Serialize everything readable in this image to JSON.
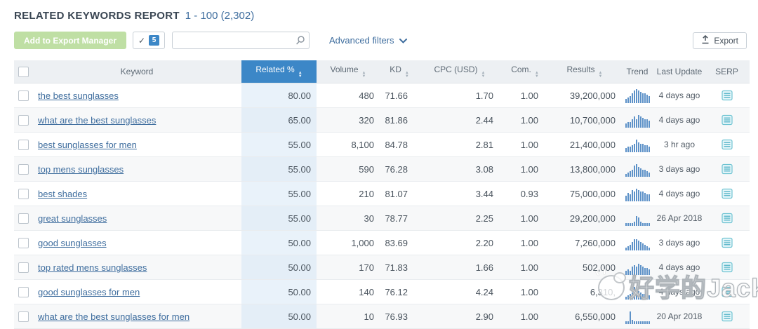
{
  "report": {
    "title": "RELATED KEYWORDS REPORT",
    "range_label": "1 - 100 (2,302)"
  },
  "toolbar": {
    "add_to_export_label": "Add to Export Manager",
    "selected_badge": "5",
    "search_value": "",
    "advanced_filters_label": "Advanced filters",
    "export_label": "Export"
  },
  "icons": {
    "check": "✓",
    "sort_up": "▲",
    "sort_down": "▼"
  },
  "table": {
    "headers": {
      "keyword": "Keyword",
      "related": "Related %",
      "volume": "Volume",
      "kd": "KD",
      "cpc": "CPC (USD)",
      "com": "Com.",
      "results": "Results",
      "trend": "Trend",
      "last_update": "Last Update",
      "serp": "SERP"
    },
    "rows": [
      {
        "keyword": "the best sunglasses",
        "related": "80.00",
        "volume": "480",
        "kd": "71.66",
        "cpc": "1.70",
        "com": "1.00",
        "results": "39,200,000",
        "last_update": "4 days ago",
        "trend": [
          2,
          3,
          4,
          6,
          8,
          9,
          8,
          7,
          6,
          6,
          5,
          4
        ]
      },
      {
        "keyword": "what are the best sunglasses",
        "related": "65.00",
        "volume": "320",
        "kd": "81.86",
        "cpc": "2.44",
        "com": "1.00",
        "results": "10,700,000",
        "last_update": "4 days ago",
        "trend": [
          2,
          3,
          3,
          5,
          7,
          5,
          8,
          7,
          6,
          5,
          5,
          4
        ]
      },
      {
        "keyword": "best sunglasses for men",
        "related": "55.00",
        "volume": "8,100",
        "kd": "84.78",
        "cpc": "2.81",
        "com": "1.00",
        "results": "21,400,000",
        "last_update": "3 hr ago",
        "trend": [
          2,
          3,
          3,
          4,
          5,
          8,
          6,
          5,
          5,
          4,
          4,
          3
        ]
      },
      {
        "keyword": "top mens sunglasses",
        "related": "55.00",
        "volume": "590",
        "kd": "76.28",
        "cpc": "3.08",
        "com": "1.00",
        "results": "13,800,000",
        "last_update": "3 days ago",
        "trend": [
          1,
          2,
          3,
          4,
          7,
          8,
          6,
          5,
          4,
          4,
          3,
          2
        ]
      },
      {
        "keyword": "best shades",
        "related": "55.00",
        "volume": "210",
        "kd": "81.07",
        "cpc": "3.44",
        "com": "0.93",
        "results": "75,000,000",
        "last_update": "4 days ago",
        "trend": [
          3,
          5,
          4,
          7,
          6,
          8,
          7,
          6,
          6,
          5,
          4,
          4
        ]
      },
      {
        "keyword": "great sunglasses",
        "related": "55.00",
        "volume": "30",
        "kd": "78.77",
        "cpc": "2.25",
        "com": "1.00",
        "results": "29,200,000",
        "last_update": "26 Apr 2018",
        "trend": [
          1,
          1,
          1,
          1,
          2,
          6,
          5,
          2,
          1,
          1,
          1,
          1
        ]
      },
      {
        "keyword": "good sunglasses",
        "related": "50.00",
        "volume": "1,000",
        "kd": "83.69",
        "cpc": "2.20",
        "com": "1.00",
        "results": "7,260,000",
        "last_update": "3 days ago",
        "trend": [
          1,
          2,
          3,
          5,
          7,
          7,
          6,
          5,
          4,
          3,
          2,
          1
        ]
      },
      {
        "keyword": "top rated mens sunglasses",
        "related": "50.00",
        "volume": "170",
        "kd": "71.83",
        "cpc": "1.66",
        "com": "1.00",
        "results": "502,000",
        "last_update": "4 days ago",
        "trend": [
          2,
          3,
          2,
          5,
          6,
          5,
          7,
          6,
          5,
          4,
          4,
          3
        ]
      },
      {
        "keyword": "good sunglasses for men",
        "related": "50.00",
        "volume": "140",
        "kd": "76.12",
        "cpc": "4.24",
        "com": "1.00",
        "results": "6,310,",
        "last_update": "4 days ago",
        "trend": [
          1,
          2,
          3,
          4,
          8,
          7,
          5,
          4,
          3,
          3,
          2,
          2
        ]
      },
      {
        "keyword": "what are the best sunglasses for men",
        "related": "50.00",
        "volume": "10",
        "kd": "76.93",
        "cpc": "2.90",
        "com": "1.00",
        "results": "6,550,000",
        "last_update": "20 Apr 2018",
        "trend": [
          1,
          1,
          8,
          2,
          1,
          1,
          1,
          1,
          1,
          1,
          1,
          1
        ]
      }
    ]
  },
  "watermark": {
    "text": "好学的Jack"
  },
  "colors": {
    "accent-blue": "#3c87c7",
    "link-blue": "#3e6d9e",
    "export-green": "#bfdfa4",
    "trend-bar-blue": "#5e92c8",
    "serp-icon-teal": "#49aec3",
    "header-bg": "#edf0f3",
    "row-alt-bg": "#f7f8f9"
  }
}
